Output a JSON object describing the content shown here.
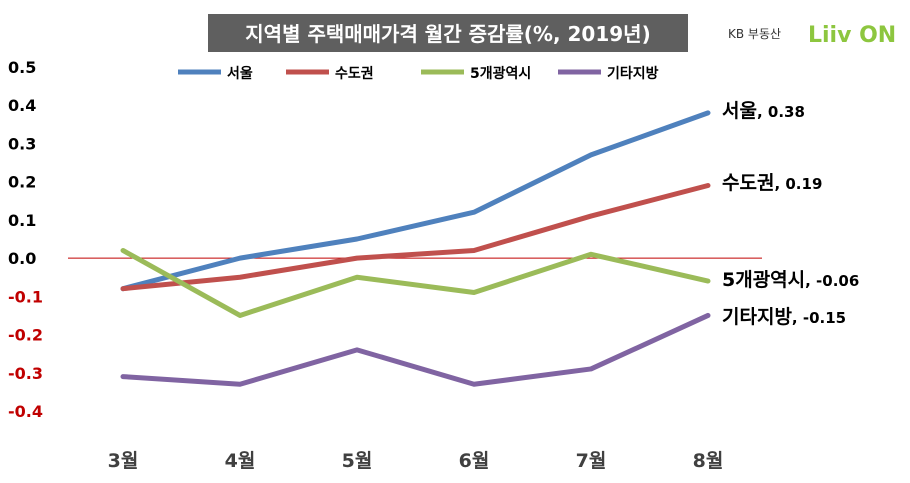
{
  "colors": {
    "서울": "#4F81BD",
    "수도권": "#C0504D",
    "5개광역시": "#9BBB59",
    "기타지방": "#8064A2",
    "negative_tick": "#C00000",
    "positive_tick": "#000000",
    "zero_line": "#C00000",
    "title_bg": "#5F5F5F",
    "brand_green": "#8DC63F",
    "brand_gold": "#E2A31B"
  },
  "branding": {
    "small": "KB 부동산",
    "logo": "Liiv ON"
  },
  "chart_data": {
    "type": "line",
    "title": "지역별 주택매매가격 월간 증감률(%, 2019년)",
    "categories": [
      "3월",
      "4월",
      "5월",
      "6월",
      "7월",
      "8월"
    ],
    "ylim": [
      -0.4,
      0.5
    ],
    "yticks": [
      "0.5",
      "0.4",
      "0.3",
      "0.2",
      "0.1",
      "0.0",
      "-0.1",
      "-0.2",
      "-0.3",
      "-0.4"
    ],
    "ytick_values": [
      0.5,
      0.4,
      0.3,
      0.2,
      0.1,
      0.0,
      -0.1,
      -0.2,
      -0.3,
      -0.4
    ],
    "legend_position": "top",
    "grid": false,
    "series": [
      {
        "name": "서울",
        "values": [
          -0.08,
          0.0,
          0.05,
          0.12,
          0.27,
          0.38
        ],
        "end_label": "0.38"
      },
      {
        "name": "수도권",
        "values": [
          -0.08,
          -0.05,
          0.0,
          0.02,
          0.11,
          0.19
        ],
        "end_label": "0.19"
      },
      {
        "name": "5개광역시",
        "values": [
          0.02,
          -0.15,
          -0.05,
          -0.09,
          0.01,
          -0.06
        ],
        "end_label": "-0.06"
      },
      {
        "name": "기타지방",
        "values": [
          -0.31,
          -0.33,
          -0.24,
          -0.33,
          -0.29,
          -0.15
        ],
        "end_label": "-0.15"
      }
    ]
  }
}
